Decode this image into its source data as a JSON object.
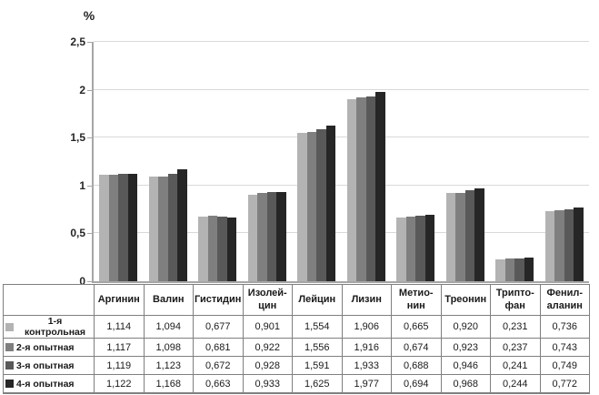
{
  "chart_data": {
    "type": "bar",
    "title": "",
    "ylabel": "%",
    "xlabel": "",
    "ylim": [
      0,
      2.5
    ],
    "grid": true,
    "legend_position": "table-left",
    "decimal_separator": ",",
    "yticks": [
      {
        "value": 0,
        "label": "0"
      },
      {
        "value": 0.5,
        "label": "0,5"
      },
      {
        "value": 1,
        "label": "1"
      },
      {
        "value": 1.5,
        "label": "1,5"
      },
      {
        "value": 2,
        "label": "2"
      },
      {
        "value": 2.5,
        "label": "2,5"
      }
    ],
    "categories": [
      "Аргинин",
      "Валин",
      "Гистидин",
      "Изолейцин",
      "Лейцин",
      "Лизин",
      "Метионин",
      "Треонин",
      "Триптофан",
      "Фенилаланин"
    ],
    "categories_display": [
      "Аргинин",
      "Валин",
      "Гистидин",
      "Изолей-\nцин",
      "Лейцин",
      "Лизин",
      "Метио-\nнин",
      "Треонин",
      "Трипто-\nфан",
      "Фенил-\nаланин"
    ],
    "series": [
      {
        "name": "1-я контрольная",
        "color": "#b3b3b3",
        "values": [
          1.114,
          1.094,
          0.677,
          0.901,
          1.554,
          1.906,
          0.665,
          0.92,
          0.231,
          0.736
        ]
      },
      {
        "name": "2-я опытная",
        "color": "#7f7f7f",
        "values": [
          1.117,
          1.098,
          0.681,
          0.922,
          1.556,
          1.916,
          0.674,
          0.923,
          0.237,
          0.743
        ]
      },
      {
        "name": "3-я опытная",
        "color": "#595959",
        "values": [
          1.119,
          1.123,
          0.672,
          0.928,
          1.591,
          1.933,
          0.688,
          0.946,
          0.241,
          0.749
        ]
      },
      {
        "name": "4-я опытная",
        "color": "#262626",
        "values": [
          1.122,
          1.168,
          0.663,
          0.933,
          1.625,
          1.977,
          0.694,
          0.968,
          0.244,
          0.772
        ]
      }
    ],
    "colors": {
      "axis": "#a6a6a6",
      "gridline": "#d9d9d9",
      "table_border": "#7f7f7f",
      "text": "#262626",
      "background": "#ffffff"
    }
  }
}
